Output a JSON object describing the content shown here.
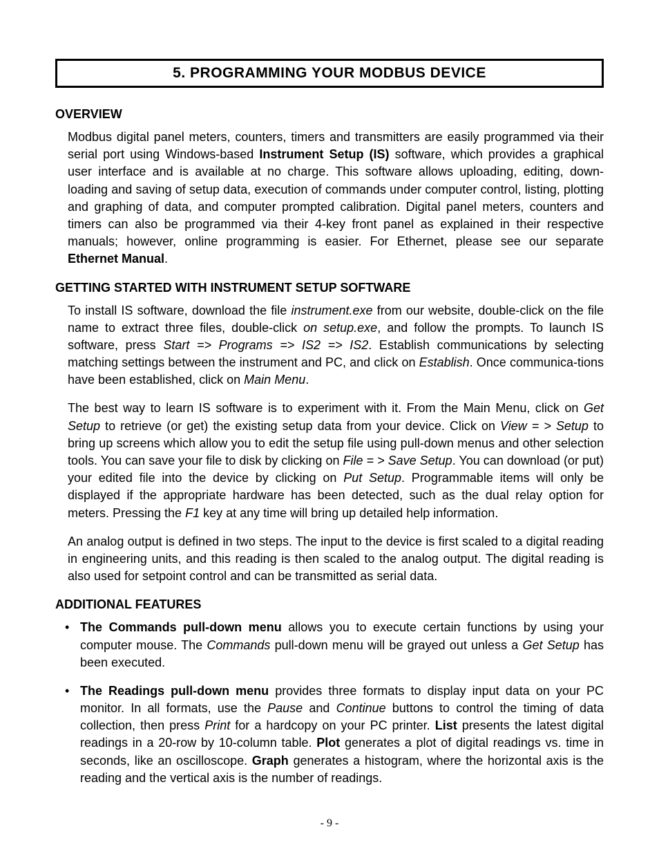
{
  "title": "5.  PROGRAMMING YOUR MODBUS DEVICE",
  "overview": {
    "heading": "OVERVIEW",
    "p1_a": "Modbus digital panel meters, counters, timers and transmitters are easily programmed via their serial port using Windows-based ",
    "p1_b": "Instrument Setup (IS)",
    "p1_c": " software, which provides a graphical user interface and is available at no charge. This software allows uploading, editing, down-loading and saving of setup data, execution of commands under computer control, listing, plotting and graphing of data, and computer prompted calibration. Digital panel meters, counters and timers can also be programmed via their 4-key front panel as explained in their respective manuals; however, online programming is easier. For Ethernet, please see our separate ",
    "p1_d": "Ethernet Manual",
    "p1_e": "."
  },
  "getting": {
    "heading": "GETTING STARTED WITH INSTRUMENT SETUP SOFTWARE",
    "p1_a": "To install IS software, download the file ",
    "p1_b": "instrument.exe",
    "p1_c": " from our website, double-click on the file name to extract three files, double-click ",
    "p1_d": "on setup.exe",
    "p1_e": ", and follow the prompts. To launch IS software, press ",
    "p1_f": "Start  =>  Programs  =>  IS2  =>  IS2",
    "p1_g": ". Establish communications by selecting matching settings between the instrument and PC, and click on ",
    "p1_h": "Establish",
    "p1_i": ". Once communica-tions have been established, click on ",
    "p1_j": "Main Menu",
    "p1_k": ".",
    "p2_a": "The best way to learn IS software is to experiment with it. From the Main Menu, click on ",
    "p2_b": "Get Setup",
    "p2_c": " to retrieve (or get) the existing setup data from your device. Click on ",
    "p2_d": "View  = > Setup",
    "p2_e": " to bring up screens which allow you to edit the setup file using pull-down menus and other selection tools. You can save your file to disk by clicking on ",
    "p2_f": "File  = >  Save Setup",
    "p2_g": ". You can download (or put) your edited file into the device by clicking on ",
    "p2_h": "Put Setup",
    "p2_i": ". Programmable items will only be displayed if the appropriate hardware has  been detected, such as the dual relay option for meters. Pressing the ",
    "p2_j": "F1",
    "p2_k": " key at any time will bring up detailed help information.",
    "p3": "An analog output is defined in two steps. The input to the device is first scaled to a digital reading in engineering units, and this reading is then scaled to the analog output. The digital reading is also used for setpoint control and can be transmitted as serial data."
  },
  "additional": {
    "heading": "ADDITIONAL FEATURES",
    "b1_a": "The Commands pull-down menu",
    "b1_b": " allows you to execute certain functions by using your computer mouse. The ",
    "b1_c": "Commands",
    "b1_d": " pull-down menu will be grayed out unless a ",
    "b1_e": "Get Setup",
    "b1_f": " has been executed.",
    "b2_a": "The Readings pull-down menu",
    "b2_b": " provides three formats to display input data on your PC monitor. In all formats, use the ",
    "b2_c": "Pause",
    "b2_d": " and ",
    "b2_e": "Continue",
    "b2_f": " buttons to control the timing of data collection, then press ",
    "b2_g": "Print",
    "b2_h": " for a hardcopy on your PC printer. ",
    "b2_i": "List",
    "b2_j": " presents the latest digital readings in a 20-row by 10-column table. ",
    "b2_k": "Plot",
    "b2_l": " generates a plot of digital readings vs. time in seconds, like an oscilloscope. ",
    "b2_m": "Graph",
    "b2_n": " generates a histogram, where the horizontal axis is the reading and the vertical axis is the number of readings."
  },
  "footer": "- 9 -"
}
